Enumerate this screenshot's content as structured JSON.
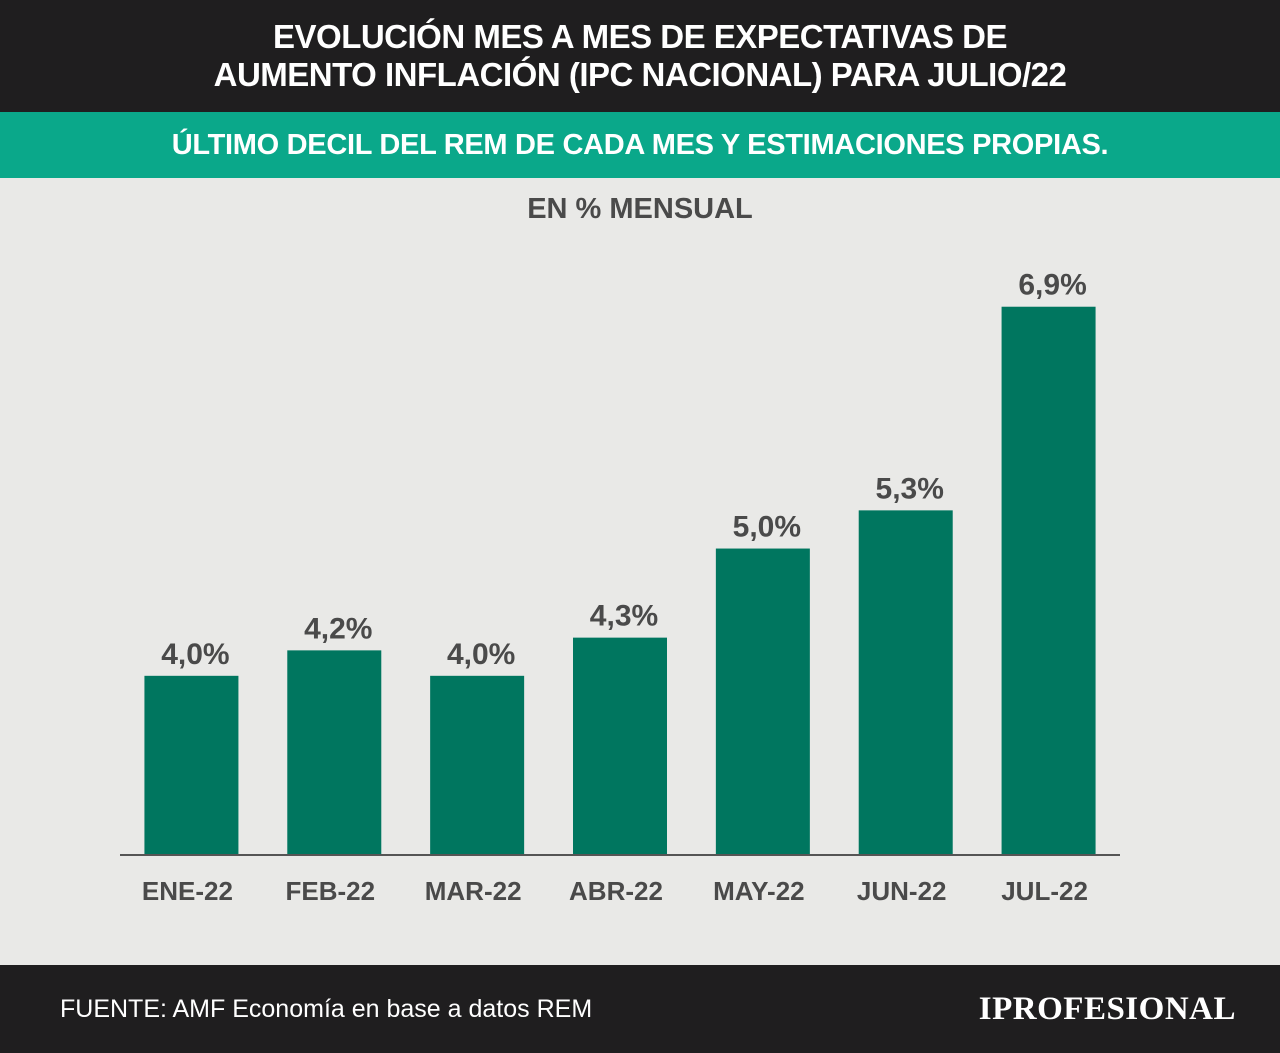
{
  "header": {
    "title": "EVOLUCIÓN MES A MES DE EXPECTATIVAS DE AUMENTO INFLACIÓN (IPC NACIONAL) PARA JULIO/22",
    "subtitle": "ÚLTIMO DECIL DEL REM DE CADA MES Y ESTIMACIONES PROPIAS."
  },
  "footer": {
    "source": "FUENTE: AMF Economía en base a datos REM",
    "logo": "IPROFESIONAL"
  },
  "colors": {
    "header_bg": "#1f1e1f",
    "subheader_bg": "#0aa88a",
    "bar": "#00765f",
    "background": "#e9e9e7",
    "label_text": "#4a4a4a"
  },
  "chart_data": {
    "type": "bar",
    "categories": [
      "ENE-22",
      "FEB-22",
      "MAR-22",
      "ABR-22",
      "MAY-22",
      "JUN-22",
      "JUL-22"
    ],
    "values": [
      4.0,
      4.2,
      4.0,
      4.3,
      5.0,
      5.3,
      6.9
    ],
    "data_labels": [
      "4,0%",
      "4,2%",
      "4,0%",
      "4,3%",
      "5,0%",
      "5,3%",
      "6,9%"
    ],
    "title": "",
    "ylabel": "EN % MENSUAL",
    "xlabel": "",
    "ylim": [
      2.6,
      7.0
    ],
    "grid": false,
    "legend": "none"
  }
}
